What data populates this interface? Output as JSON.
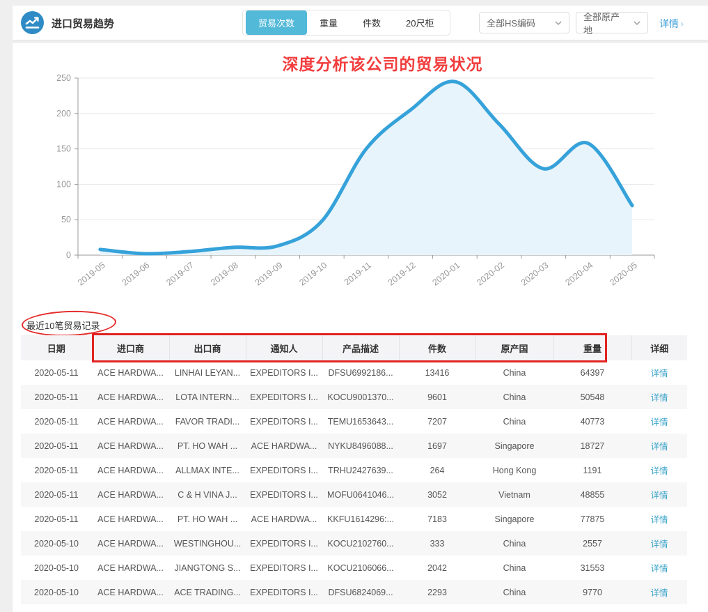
{
  "header": {
    "title": "进口贸易趋势",
    "icon": "trend-line-icon",
    "tabs": [
      {
        "label": "贸易次数",
        "selected": true
      },
      {
        "label": "重量",
        "selected": false
      },
      {
        "label": "件数",
        "selected": false
      },
      {
        "label": "20尺柜",
        "selected": false
      }
    ],
    "filters": [
      {
        "label": "全部HS编码"
      },
      {
        "label": "全部原产地"
      }
    ],
    "detail_link": "详情",
    "detail_chevron": "›",
    "accent_color": "#52b9d8"
  },
  "annotations": {
    "chart_title": "深度分析该公司的贸易状况",
    "annotation_color": "#f23d3d"
  },
  "chart_data": {
    "type": "area",
    "title": "",
    "x": [
      "2019-05",
      "2019-06",
      "2019-07",
      "2019-08",
      "2019-09",
      "2019-10",
      "2019-11",
      "2019-12",
      "2020-01",
      "2020-02",
      "2020-03",
      "2020-04",
      "2020-05"
    ],
    "series": [
      {
        "name": "贸易次数",
        "values": [
          8,
          2,
          5,
          11,
          13,
          48,
          150,
          205,
          245,
          185,
          122,
          158,
          70
        ]
      }
    ],
    "ylim": [
      0,
      250
    ],
    "yticks": [
      0,
      50,
      100,
      150,
      200,
      250
    ],
    "grid": true,
    "legend": false,
    "line_color": "#36a2da",
    "fill_color": "#e8f4fb",
    "axis_color": "#999999",
    "grid_color": "#e7e7e7"
  },
  "table": {
    "caption": "最近10笔贸易记录",
    "columns": [
      "日期",
      "进口商",
      "出口商",
      "通知人",
      "产品描述",
      "件数",
      "原产国",
      "重量",
      "详细"
    ],
    "detail_label": "详情",
    "rows": [
      [
        "2020-05-11",
        "ACE HARDWA...",
        "LINHAI LEYAN...",
        "EXPEDITORS I...",
        "DFSU6992186...",
        "13416",
        "China",
        "64397"
      ],
      [
        "2020-05-11",
        "ACE HARDWA...",
        "LOTA INTERN...",
        "EXPEDITORS I...",
        "KOCU9001370...",
        "9601",
        "China",
        "50548"
      ],
      [
        "2020-05-11",
        "ACE HARDWA...",
        "FAVOR TRADI...",
        "EXPEDITORS I...",
        "TEMU1653643...",
        "7207",
        "China",
        "40773"
      ],
      [
        "2020-05-11",
        "ACE HARDWA...",
        "PT. HO WAH ...",
        "ACE HARDWA...",
        "NYKU8496088...",
        "1697",
        "Singapore",
        "18727"
      ],
      [
        "2020-05-11",
        "ACE HARDWA...",
        "ALLMAX INTE...",
        "EXPEDITORS I...",
        "TRHU2427639...",
        "264",
        "Hong Kong",
        "1191"
      ],
      [
        "2020-05-11",
        "ACE HARDWA...",
        "C & H VINA J...",
        "EXPEDITORS I...",
        "MOFU0641046...",
        "3052",
        "Vietnam",
        "48855"
      ],
      [
        "2020-05-11",
        "ACE HARDWA...",
        "PT. HO WAH ...",
        "ACE HARDWA...",
        "KKFU1614296:...",
        "7183",
        "Singapore",
        "77875"
      ],
      [
        "2020-05-10",
        "ACE HARDWA...",
        "WESTINGHOU...",
        "EXPEDITORS I...",
        "KOCU2102760...",
        "333",
        "China",
        "2557"
      ],
      [
        "2020-05-10",
        "ACE HARDWA...",
        "JIANGTONG S...",
        "EXPEDITORS I...",
        "KOCU2106066...",
        "2042",
        "China",
        "31553"
      ],
      [
        "2020-05-10",
        "ACE HARDWA...",
        "ACE TRADING...",
        "EXPEDITORS I...",
        "DFSU6824069...",
        "2293",
        "China",
        "9770"
      ]
    ]
  }
}
